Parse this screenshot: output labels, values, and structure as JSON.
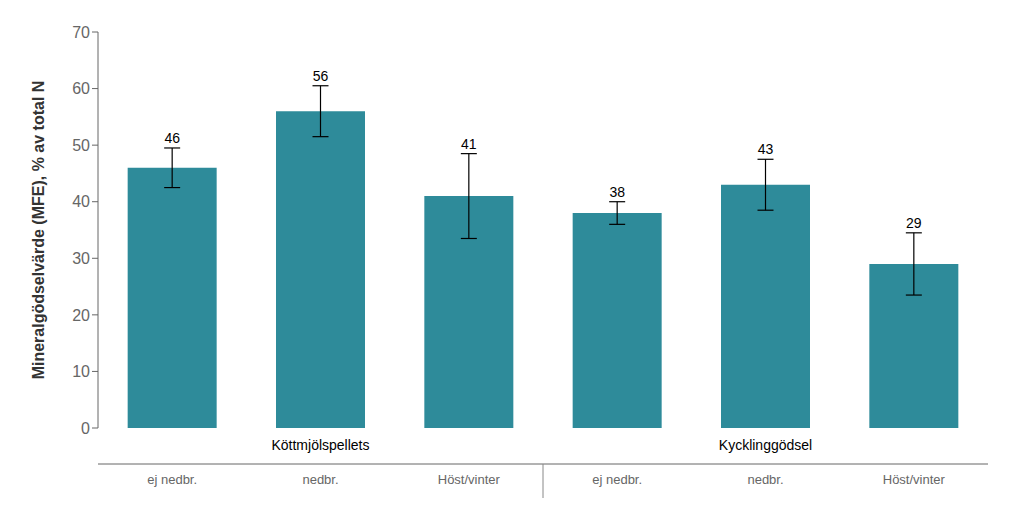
{
  "chart_data": {
    "type": "bar",
    "categories": [
      "ej nedbr.",
      "nedbr.",
      "Höst/vinter",
      "ej nedbr.",
      "nedbr.",
      "Höst/vinter"
    ],
    "values": [
      46,
      56,
      41,
      38,
      43,
      29
    ],
    "errors": [
      3.5,
      4.5,
      7.5,
      2.0,
      4.5,
      5.5
    ],
    "color": "#2e8b9a",
    "ylabel": "Mineralgödselvärde (MFE), % av total N",
    "ylim": [
      0,
      70
    ],
    "yticks": [
      0,
      10,
      20,
      30,
      40,
      50,
      60,
      70
    ],
    "data_labels": true,
    "grid": false,
    "groups": [
      {
        "name": "Köttmjölspellets",
        "categories": [
          "ej nedbr.",
          "nedbr.",
          "Höst/vinter"
        ]
      },
      {
        "name": "Kycklinggödsel",
        "categories": [
          "ej nedbr.",
          "nedbr.",
          "Höst/vinter"
        ]
      }
    ]
  }
}
